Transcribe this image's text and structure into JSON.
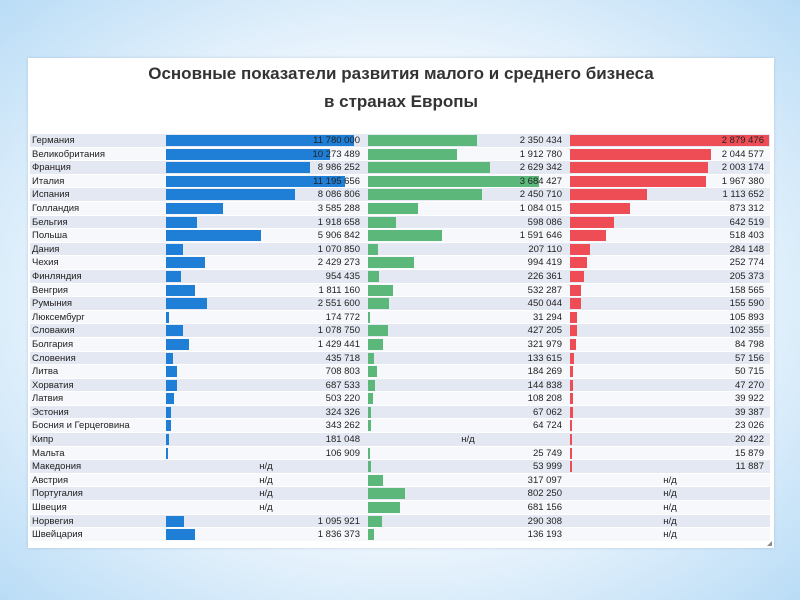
{
  "title_line1": "Основные показатели развития малого и среднего бизнеса",
  "title_line2": "в странах Европы",
  "chart_data": {
    "type": "table",
    "na_label": "н/д",
    "columns": [
      {
        "color": "#1f7fd6",
        "max": 12500000
      },
      {
        "color": "#5bb87a",
        "max": 4300000
      },
      {
        "color": "#ef4d55",
        "max": 2900000
      }
    ],
    "rows": [
      {
        "country": "Германия",
        "v": [
          11780000,
          2350434,
          2879476
        ],
        "labels": [
          "11 780 000",
          "2 350 434",
          "2 879 476"
        ]
      },
      {
        "country": "Великобритания",
        "v": [
          10273489,
          1912780,
          2044577
        ],
        "labels": [
          "10 273 489",
          "1 912 780",
          "2 044 577"
        ]
      },
      {
        "country": "Франция",
        "v": [
          8986252,
          2629342,
          2003174
        ],
        "labels": [
          "8 986 252",
          "2 629 342",
          "2 003 174"
        ]
      },
      {
        "country": "Италия",
        "v": [
          11195656,
          3684427,
          1967380
        ],
        "labels": [
          "11 195 656",
          "3 684 427",
          "1 967 380"
        ]
      },
      {
        "country": "Испания",
        "v": [
          8086806,
          2450710,
          1113652
        ],
        "labels": [
          "8 086 806",
          "2 450 710",
          "1 113 652"
        ]
      },
      {
        "country": "Голландия",
        "v": [
          3585288,
          1084015,
          873312
        ],
        "labels": [
          "3 585 288",
          "1 084 015",
          "873 312"
        ]
      },
      {
        "country": "Бельгия",
        "v": [
          1918658,
          598086,
          642519
        ],
        "labels": [
          "1 918 658",
          "598 086",
          "642 519"
        ]
      },
      {
        "country": "Польша",
        "v": [
          5906842,
          1591646,
          518403
        ],
        "labels": [
          "5 906 842",
          "1 591 646",
          "518 403"
        ]
      },
      {
        "country": "Дания",
        "v": [
          1070850,
          207110,
          284148
        ],
        "labels": [
          "1 070 850",
          "207 110",
          "284 148"
        ]
      },
      {
        "country": "Чехия",
        "v": [
          2429273,
          994419,
          252774
        ],
        "labels": [
          "2 429 273",
          "994 419",
          "252 774"
        ]
      },
      {
        "country": "Финляндия",
        "v": [
          954435,
          226361,
          205373
        ],
        "labels": [
          "954 435",
          "226 361",
          "205 373"
        ]
      },
      {
        "country": "Венгрия",
        "v": [
          1811160,
          532287,
          158565
        ],
        "labels": [
          "1 811 160",
          "532 287",
          "158 565"
        ]
      },
      {
        "country": "Румыния",
        "v": [
          2551600,
          450044,
          155590
        ],
        "labels": [
          "2 551 600",
          "450 044",
          "155 590"
        ]
      },
      {
        "country": "Люксембург",
        "v": [
          174772,
          31294,
          105893
        ],
        "labels": [
          "174 772",
          "31 294",
          "105 893"
        ]
      },
      {
        "country": "Словакия",
        "v": [
          1078750,
          427205,
          102355
        ],
        "labels": [
          "1 078 750",
          "427 205",
          "102 355"
        ]
      },
      {
        "country": "Болгария",
        "v": [
          1429441,
          321979,
          84798
        ],
        "labels": [
          "1 429 441",
          "321 979",
          "84 798"
        ]
      },
      {
        "country": "Словения",
        "v": [
          435718,
          133615,
          57156
        ],
        "labels": [
          "435 718",
          "133 615",
          "57 156"
        ]
      },
      {
        "country": "Литва",
        "v": [
          708803,
          184269,
          50715
        ],
        "labels": [
          "708 803",
          "184 269",
          "50 715"
        ]
      },
      {
        "country": "Хорватия",
        "v": [
          687533,
          144838,
          47270
        ],
        "labels": [
          "687 533",
          "144 838",
          "47 270"
        ]
      },
      {
        "country": "Латвия",
        "v": [
          503220,
          108208,
          39922
        ],
        "labels": [
          "503 220",
          "108 208",
          "39 922"
        ]
      },
      {
        "country": "Эстония",
        "v": [
          324326,
          67062,
          39387
        ],
        "labels": [
          "324 326",
          "67 062",
          "39 387"
        ]
      },
      {
        "country": "Босния и Герцеговина",
        "v": [
          343262,
          64724,
          23026
        ],
        "labels": [
          "343 262",
          "64 724",
          "23 026"
        ]
      },
      {
        "country": "Кипр",
        "v": [
          181048,
          null,
          20422
        ],
        "labels": [
          "181 048",
          null,
          "20 422"
        ]
      },
      {
        "country": "Мальта",
        "v": [
          106909,
          25749,
          15879
        ],
        "labels": [
          "106 909",
          "25 749",
          "15 879"
        ]
      },
      {
        "country": "Македония",
        "v": [
          null,
          53999,
          11887
        ],
        "labels": [
          null,
          "53 999",
          "11 887"
        ]
      },
      {
        "country": "Австрия",
        "v": [
          null,
          317097,
          null
        ],
        "labels": [
          null,
          "317 097",
          null
        ]
      },
      {
        "country": "Португалия",
        "v": [
          null,
          802250,
          null
        ],
        "labels": [
          null,
          "802 250",
          null
        ]
      },
      {
        "country": "Швеция",
        "v": [
          null,
          681156,
          null
        ],
        "labels": [
          null,
          "681 156",
          null
        ]
      },
      {
        "country": "Норвегия",
        "v": [
          1095921,
          290308,
          null
        ],
        "labels": [
          "1 095 921",
          "290 308",
          null
        ]
      },
      {
        "country": "Швейцария",
        "v": [
          1836373,
          136193,
          null
        ],
        "labels": [
          "1 836 373",
          "136 193",
          null
        ]
      }
    ]
  }
}
